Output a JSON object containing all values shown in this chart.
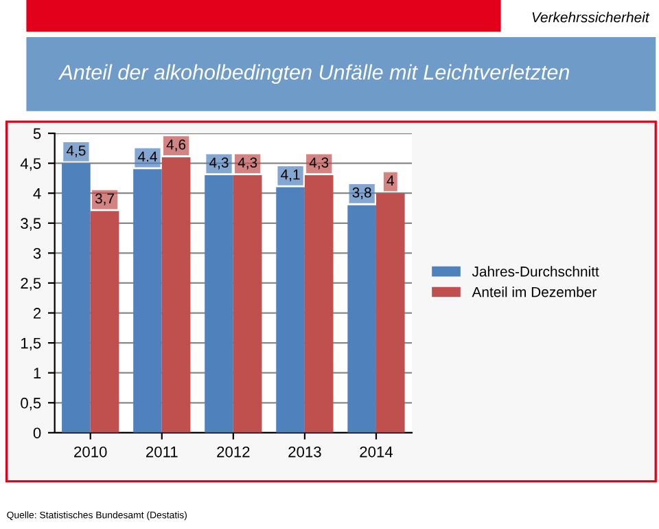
{
  "chart_data": {
    "type": "bar",
    "title": "Anteil der alkoholbedingten Unfälle mit Leichtverletzten",
    "subtitle": "Verkehrssicherheit",
    "categories": [
      "2010",
      "2011",
      "2012",
      "2013",
      "2014"
    ],
    "series": [
      {
        "name": "Jahres-Durchschnitt",
        "color": "#4f81bd",
        "values": [
          4.5,
          4.4,
          4.3,
          4.1,
          3.8
        ],
        "value_labels": [
          "4,5",
          "4.4",
          "4,3",
          "4,1",
          "3,8"
        ]
      },
      {
        "name": "Anteil im Dezember",
        "color": "#c0504d",
        "values": [
          3.7,
          4.6,
          4.3,
          4.3,
          4.0
        ],
        "value_labels": [
          "3,7",
          "4,6",
          "4,3",
          "4,3",
          "4"
        ]
      }
    ],
    "ylim": [
      0,
      5
    ],
    "yticks": [
      0,
      {
        "value": 0.5,
        "label": "0,5"
      },
      1,
      {
        "value": 1.5,
        "label": "1,5"
      },
      2,
      {
        "value": 2.5,
        "label": "2,5"
      },
      3,
      {
        "value": 3.5,
        "label": "3,5"
      },
      4,
      {
        "value": 4.5,
        "label": "4,5"
      },
      5
    ],
    "grid": "y",
    "legend": "right",
    "annotations": [
      "Quelle: Statistisches Bundesamt (Destatis)"
    ]
  }
}
